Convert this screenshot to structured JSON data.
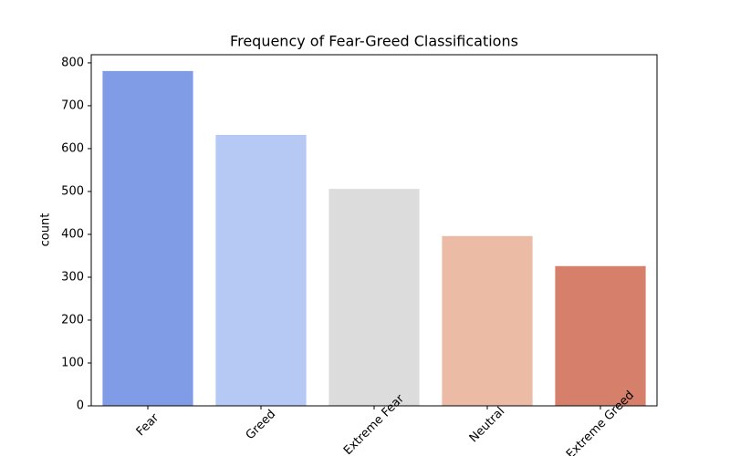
{
  "chart_data": {
    "type": "bar",
    "title": "Frequency of Fear-Greed Classifications",
    "y_label": "count",
    "categories": [
      "Fear",
      "Greed",
      "Extreme Fear",
      "Neutral",
      "Extreme Greed"
    ],
    "values": [
      781,
      632,
      506,
      396,
      326
    ],
    "colors": [
      "#819ce6",
      "#b5c9f4",
      "#dcdcdc",
      "#ecbba5",
      "#d6806b"
    ],
    "ylim": [
      0,
      819
    ],
    "yticks": [
      0,
      100,
      200,
      300,
      400,
      500,
      600,
      700,
      800
    ],
    "grid": false
  }
}
